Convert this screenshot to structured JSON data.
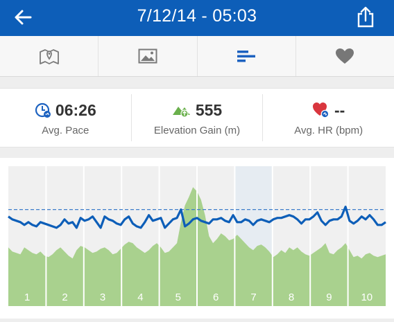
{
  "header": {
    "title": "7/12/14 - 05:03",
    "back_icon": "arrow-left-icon",
    "share_icon": "share-icon"
  },
  "tabs": [
    {
      "name": "map",
      "icon": "map-icon",
      "selected": false
    },
    {
      "name": "photos",
      "icon": "photo-icon",
      "selected": false
    },
    {
      "name": "splits",
      "icon": "bars-icon",
      "selected": true
    },
    {
      "name": "heart",
      "icon": "heart-icon",
      "selected": false
    }
  ],
  "stats": [
    {
      "value": "06:26",
      "label": "Avg. Pace",
      "icon": "pace-clock-icon"
    },
    {
      "value": "555",
      "label": "Elevation Gain (m)",
      "icon": "elevation-mountain-icon"
    },
    {
      "value": "--",
      "label": "Avg. HR (bpm)",
      "icon": "heart-rate-icon"
    }
  ],
  "colors": {
    "header": "#0d5eb8",
    "pace_line": "#0d5eb8",
    "elevation_fill": "#a9d18e",
    "highlight": "#e6ecf2"
  },
  "chart_data": {
    "type": "area",
    "title": "",
    "x_labels": [
      "1",
      "2",
      "3",
      "4",
      "5",
      "6",
      "7",
      "8",
      "9",
      "10"
    ],
    "highlighted_split": "7",
    "average_pace_line": true,
    "pace_line": [
      36,
      38,
      39,
      40,
      42,
      40,
      42,
      43,
      40,
      41,
      42,
      43,
      44,
      42,
      38,
      41,
      40,
      44,
      37,
      39,
      38,
      36,
      40,
      44,
      36,
      38,
      39,
      41,
      42,
      38,
      36,
      41,
      43,
      44,
      40,
      35,
      39,
      38,
      37,
      44,
      41,
      38,
      37,
      31,
      43,
      41,
      38,
      37,
      39,
      40,
      41,
      38,
      38,
      37,
      39,
      40,
      35,
      40,
      40,
      38,
      39,
      42,
      39,
      38,
      39,
      40,
      38,
      37,
      37,
      36,
      35,
      36,
      38,
      41,
      38,
      38,
      36,
      33,
      39,
      42,
      39,
      38,
      38,
      36,
      29,
      39,
      41,
      39,
      36,
      38,
      35,
      38,
      42,
      42,
      40
    ],
    "elevation": [
      58,
      61,
      62,
      63,
      58,
      60,
      62,
      63,
      61,
      64,
      65,
      63,
      60,
      58,
      61,
      64,
      66,
      60,
      57,
      58,
      60,
      62,
      61,
      59,
      58,
      60,
      63,
      62,
      59,
      56,
      54,
      55,
      58,
      60,
      62,
      60,
      57,
      55,
      58,
      62,
      61,
      58,
      55,
      40,
      28,
      22,
      15,
      18,
      24,
      35,
      50,
      55,
      52,
      48,
      50,
      53,
      52,
      49,
      52,
      55,
      58,
      60,
      57,
      56,
      58,
      61,
      65,
      63,
      60,
      62,
      58,
      60,
      58,
      61,
      63,
      64,
      62,
      60,
      58,
      55,
      62,
      63,
      60,
      58,
      55,
      60,
      65,
      64,
      66,
      63,
      62,
      64,
      65,
      64,
      63
    ]
  }
}
